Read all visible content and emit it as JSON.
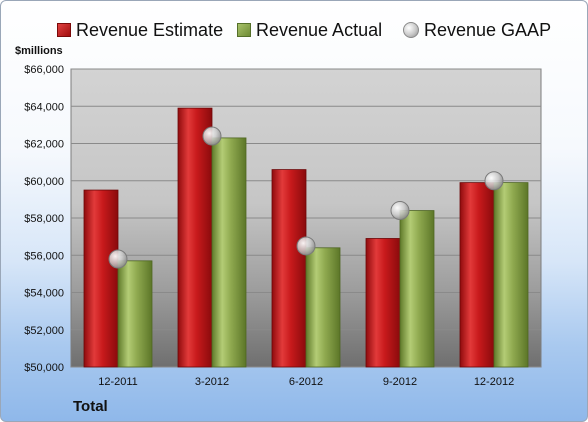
{
  "chart_data": {
    "type": "bar",
    "categories": [
      "12-2011",
      "3-2012",
      "6-2012",
      "9-2012",
      "12-2012"
    ],
    "series": [
      {
        "name": "Revenue Estimate",
        "values": [
          59500,
          63900,
          60600,
          56900,
          59900
        ],
        "color": "#c0171a",
        "kind": "bar"
      },
      {
        "name": "Revenue Actual",
        "values": [
          55700,
          62300,
          56400,
          58400,
          59900
        ],
        "color": "#8fa84e",
        "kind": "bar"
      },
      {
        "name": "Revenue GAAP",
        "values": [
          55800,
          62400,
          56500,
          58400,
          60000
        ],
        "color": "#c8c8c8",
        "kind": "marker"
      }
    ],
    "ylim": [
      50000,
      66000
    ],
    "yticks": [
      50000,
      52000,
      54000,
      56000,
      58000,
      60000,
      62000,
      64000,
      66000
    ],
    "ytick_labels": [
      "$50,000",
      "$52,000",
      "$54,000",
      "$56,000",
      "$58,000",
      "$60,000",
      "$62,000",
      "$64,000",
      "$66,000"
    ],
    "ylabel": "$millions",
    "legend_position": "top",
    "grid": true
  },
  "footer": {
    "label": "Total"
  }
}
